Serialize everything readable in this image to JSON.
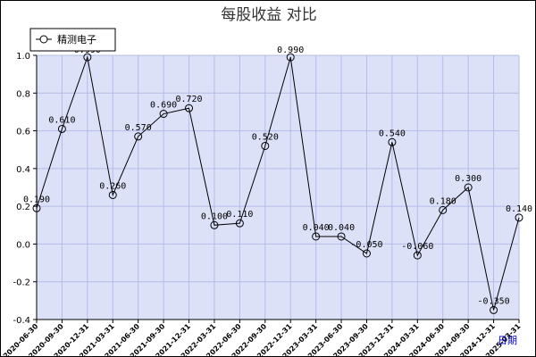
{
  "chart_data": {
    "type": "line",
    "title": "每股收益  对比",
    "xlabel": "日期",
    "ylabel": "",
    "ylim": [
      -0.4,
      1.0
    ],
    "yticks": [
      "-0.4",
      "-0.2",
      "0.0",
      "0.2",
      "0.4",
      "0.6",
      "0.8",
      "1.0"
    ],
    "grid": true,
    "legend_position": "top-left",
    "categories": [
      "2020-06-30",
      "2020-09-30",
      "2020-12-31",
      "2021-03-31",
      "2021-06-30",
      "2021-09-30",
      "2021-12-31",
      "2022-03-31",
      "2022-06-30",
      "2022-09-30",
      "2022-12-31",
      "2023-03-31",
      "2023-06-30",
      "2023-09-30",
      "2023-12-31",
      "2024-03-31",
      "2024-06-30",
      "2024-09-30",
      "2024-12-31",
      "2025-03-31"
    ],
    "series": [
      {
        "name": "精测电子",
        "color": "#000000",
        "values": [
          0.19,
          0.61,
          0.99,
          0.26,
          0.57,
          0.69,
          0.72,
          0.1,
          0.11,
          0.52,
          0.99,
          0.04,
          0.04,
          -0.05,
          0.54,
          -0.06,
          0.18,
          0.3,
          -0.35,
          0.14
        ],
        "labels": [
          "0.190",
          "0.610",
          "0.990",
          "0.260",
          "0.570",
          "0.690",
          "0.720",
          "0.100",
          "0.110",
          "0.520",
          "0.990",
          "0.040",
          "0.040",
          "-0.050",
          "0.540",
          "-0.060",
          "0.180",
          "0.300",
          "-0.350",
          "0.140"
        ]
      }
    ],
    "colors": {
      "plot_bg": "#dde1f8",
      "grid": "#b4bce8",
      "line": "#000000"
    }
  }
}
